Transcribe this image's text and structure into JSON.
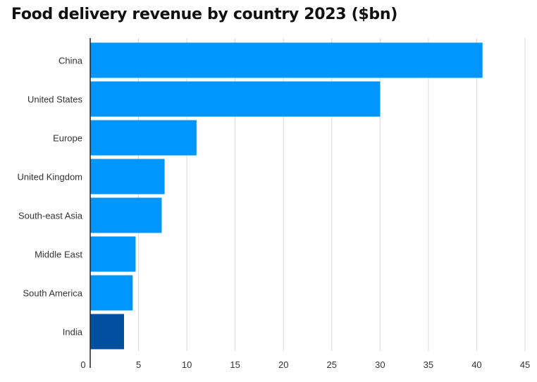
{
  "chart_data": {
    "type": "bar",
    "orientation": "horizontal",
    "title": "Food delivery revenue by country 2023 ($bn)",
    "xlabel": "",
    "ylabel": "",
    "categories": [
      "China",
      "United States",
      "Europe",
      "United Kingdom",
      "South-east Asia",
      "Middle East",
      "South America",
      "India"
    ],
    "values": [
      40.6,
      30.0,
      11.0,
      7.7,
      7.4,
      4.7,
      4.4,
      3.5
    ],
    "xlim": [
      0,
      45
    ],
    "xticks": [
      0,
      5,
      10,
      15,
      20,
      25,
      30,
      35,
      40,
      45
    ],
    "grid": true,
    "colors": {
      "bar": "#0096ff",
      "highlight": "#0050a0",
      "highlight_category": "India"
    }
  }
}
